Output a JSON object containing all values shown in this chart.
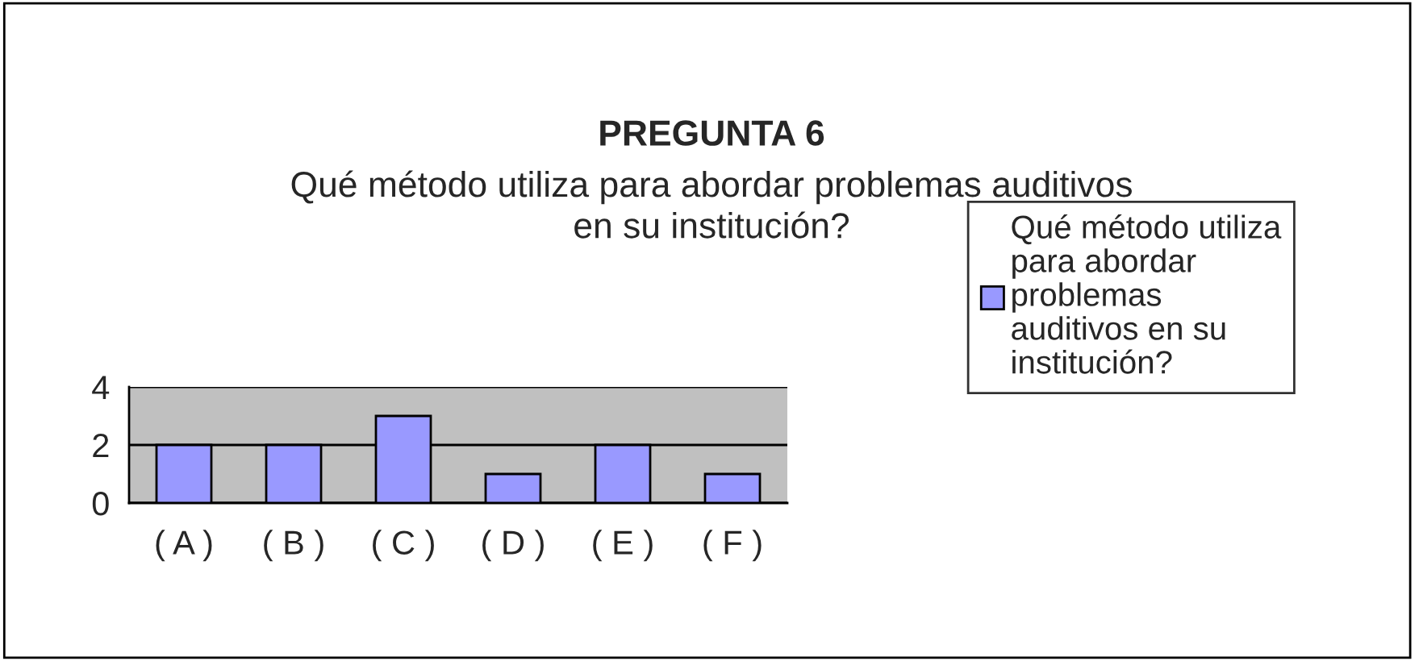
{
  "chart_data": {
    "type": "bar",
    "title": "PREGUNTA 6",
    "subtitle": "Qué método utiliza para abordar problemas auditivos en su institución?",
    "categories": [
      "( A )",
      "( B )",
      "( C )",
      "( D )",
      "( E )",
      "( F )"
    ],
    "series": [
      {
        "name": "Qué método utiliza para abordar problemas auditivos en su institución?",
        "color": "#9999ff",
        "values": [
          2,
          2,
          3,
          1,
          2,
          1
        ]
      }
    ],
    "ylim": [
      0,
      4
    ],
    "yticks": [
      0,
      2,
      4
    ],
    "grid": "y",
    "legend": "right"
  }
}
